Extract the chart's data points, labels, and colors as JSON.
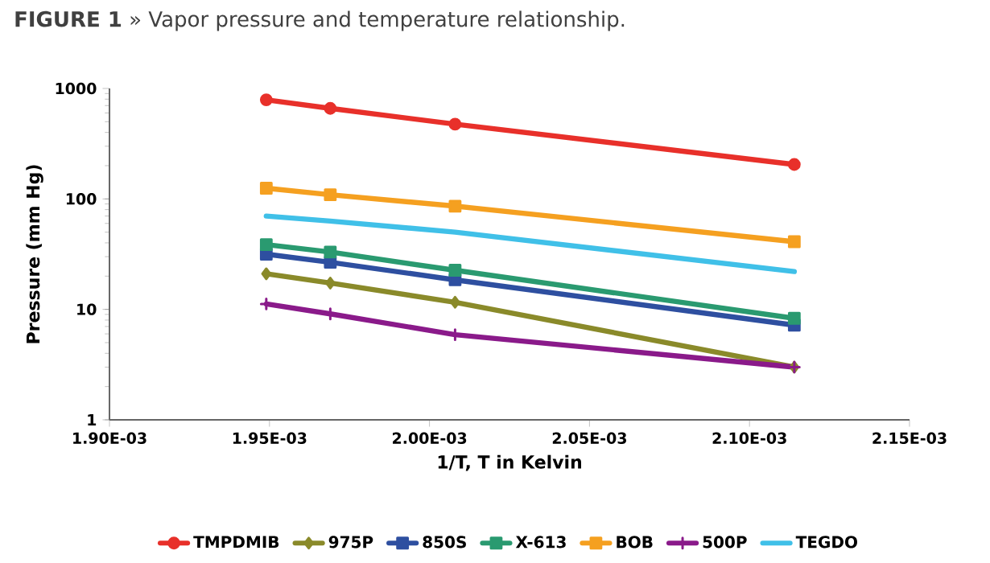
{
  "chart_data": {
    "type": "line",
    "title": "**FIGURE 1** » Vapor pressure and temperature relationship.",
    "xlabel": "1/T, T in Kelvin",
    "ylabel": "Pressure (mm Hg)",
    "x": [
      0.001949,
      0.001969,
      0.002008,
      0.002114
    ],
    "series": [
      {
        "name": "TMPDMIB",
        "color": "#e8302a",
        "marker": "circle",
        "values": [
          790,
          660,
          475,
          205
        ]
      },
      {
        "name": "975P",
        "color": "#8a8a2a",
        "marker": "diamond",
        "values": [
          21,
          17.3,
          11.6,
          3.0
        ]
      },
      {
        "name": "850S",
        "color": "#2e4fa0",
        "marker": "square",
        "values": [
          31.6,
          26.7,
          18.5,
          7.2
        ]
      },
      {
        "name": "X-613",
        "color": "#2a9a70",
        "marker": "square",
        "values": [
          38.6,
          33,
          22.6,
          8.3
        ]
      },
      {
        "name": "BOB",
        "color": "#f5a020",
        "marker": "square",
        "values": [
          125,
          109,
          86,
          41
        ]
      },
      {
        "name": "500P",
        "color": "#8a1a8a",
        "marker": "cross",
        "values": [
          11.2,
          9.1,
          5.9,
          3.0
        ]
      },
      {
        "name": "TEGDO",
        "color": "#40c0e8",
        "marker": "none",
        "values": [
          70,
          63,
          50,
          22
        ]
      }
    ],
    "log": "y",
    "grid": false,
    "legend": "bottom",
    "xlim": [
      0.0019,
      0.00215
    ],
    "xticks": [
      {
        "value": 0.0019,
        "label": "1.90E-03"
      },
      {
        "value": 0.00195,
        "label": "1.95E-03"
      },
      {
        "value": 0.002,
        "label": "2.00E-03"
      },
      {
        "value": 0.00205,
        "label": "2.05E-03"
      },
      {
        "value": 0.0021,
        "label": "2.10E-03"
      },
      {
        "value": 0.00215,
        "label": "2.15E-03"
      }
    ],
    "ylim": [
      1,
      1000
    ],
    "yticks": [
      1,
      10,
      100,
      1000
    ]
  }
}
